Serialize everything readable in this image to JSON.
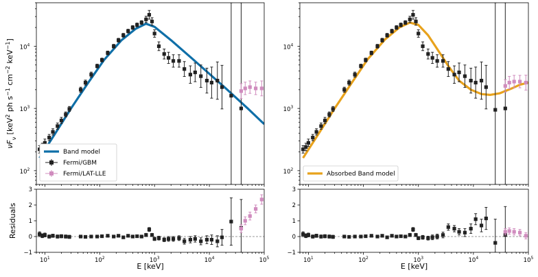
{
  "chart_data": [
    {
      "type": "scatter",
      "panel": "top-left",
      "xscale": "log",
      "yscale": "log",
      "xlim": [
        7,
        100000
      ],
      "ylim": [
        60,
        50000
      ],
      "ylabel_parts": [
        "νF",
        "ν",
        " [keV",
        "2",
        " ph s",
        "−1",
        " cm",
        "−2",
        " keV",
        "−1",
        "]"
      ],
      "xticks": [
        {
          "label": "10",
          "sup": "1",
          "v": 10
        },
        {
          "label": "10",
          "sup": "2",
          "v": 100
        },
        {
          "label": "10",
          "sup": "3",
          "v": 1000
        },
        {
          "label": "10",
          "sup": "4",
          "v": 10000
        },
        {
          "label": "10",
          "sup": "5",
          "v": 100000
        }
      ],
      "yticks": [
        {
          "label": "10",
          "sup": "2",
          "v": 100
        },
        {
          "label": "10",
          "sup": "3",
          "v": 1000
        },
        {
          "label": "10",
          "sup": "4",
          "v": 10000
        }
      ],
      "show_xticklabels": false,
      "model": {
        "name": "Band model",
        "color": "#0f6fa8",
        "x": [
          8,
          15,
          30,
          60,
          120,
          250,
          450,
          700,
          1000,
          2000,
          5000,
          10000,
          20000,
          50000,
          100000
        ],
        "y": [
          160,
          380,
          1000,
          2500,
          6000,
          12500,
          19000,
          23000,
          20500,
          12500,
          6200,
          3600,
          2100,
          1000,
          560
        ]
      },
      "series": [
        {
          "name": "Fermi/GBM",
          "color": "#222222",
          "marker": "square",
          "x": [
            8,
            9,
            10,
            12,
            14,
            17,
            20,
            24,
            28,
            45,
            55,
            70,
            90,
            110,
            140,
            180,
            220,
            270,
            330,
            400,
            480,
            580,
            700,
            800,
            900,
            1000,
            1200,
            1500,
            1800,
            2200,
            2800,
            3500,
            4500,
            5500,
            7000,
            9000,
            11000,
            14000,
            17000,
            25000,
            38000
          ],
          "y": [
            220,
            240,
            280,
            340,
            420,
            520,
            640,
            800,
            980,
            2000,
            2600,
            3500,
            4800,
            6000,
            7800,
            10000,
            12500,
            15000,
            17500,
            20000,
            22000,
            24000,
            27000,
            32000,
            25000,
            16000,
            10000,
            7500,
            6500,
            5800,
            5800,
            4300,
            3500,
            3800,
            3300,
            2800,
            2600,
            2800,
            2200,
            1600,
            1000
          ],
          "yerr": [
            0.06,
            0.06,
            0.06,
            0.05,
            0.05,
            0.05,
            0.05,
            0.04,
            0.04,
            0.04,
            0.04,
            0.04,
            0.03,
            0.03,
            0.03,
            0.03,
            0.03,
            0.03,
            0.03,
            0.03,
            0.03,
            0.03,
            0.05,
            0.07,
            0.06,
            0.06,
            0.07,
            0.08,
            0.09,
            0.1,
            0.1,
            0.12,
            0.14,
            0.15,
            0.18,
            0.2,
            0.25,
            0.3,
            0.35,
            2.0,
            2.0
          ]
        },
        {
          "name": "Fermi/LAT-LLE",
          "color": "#d08cbe",
          "marker": "square",
          "x": [
            38000,
            45000,
            55000,
            70000,
            90000
          ],
          "y": [
            1900,
            2100,
            2200,
            2100,
            2100
          ],
          "yerr": [
            0.12,
            0.1,
            0.1,
            0.1,
            0.12
          ]
        }
      ],
      "legend": {
        "location": "lower-left",
        "entries": [
          "Band model",
          "Fermi/GBM",
          "Fermi/LAT-LLE"
        ]
      }
    },
    {
      "type": "scatter",
      "panel": "top-right",
      "xscale": "log",
      "yscale": "log",
      "xlim": [
        7,
        100000
      ],
      "ylim": [
        60,
        50000
      ],
      "xticks": [
        {
          "label": "10",
          "sup": "1",
          "v": 10
        },
        {
          "label": "10",
          "sup": "2",
          "v": 100
        },
        {
          "label": "10",
          "sup": "3",
          "v": 1000
        },
        {
          "label": "10",
          "sup": "4",
          "v": 10000
        },
        {
          "label": "10",
          "sup": "5",
          "v": 100000
        }
      ],
      "yticks": [
        {
          "label": "10",
          "sup": "2",
          "v": 100
        },
        {
          "label": "10",
          "sup": "3",
          "v": 1000
        },
        {
          "label": "10",
          "sup": "4",
          "v": 10000
        }
      ],
      "show_xticklabels": false,
      "model": {
        "name": "Absorbed Band model",
        "color": "#e8a21c",
        "x": [
          8,
          15,
          30,
          60,
          120,
          250,
          450,
          700,
          1000,
          1500,
          2200,
          3500,
          5500,
          9000,
          14000,
          20000,
          30000,
          50000,
          70000,
          100000
        ],
        "y": [
          160,
          380,
          1000,
          2500,
          6200,
          13000,
          20000,
          24000,
          22000,
          15000,
          9000,
          4800,
          2800,
          2000,
          1700,
          1650,
          1750,
          2100,
          2400,
          2600
        ]
      },
      "series": [
        {
          "name": "Fermi/GBM",
          "color": "#222222",
          "marker": "square",
          "x": [
            8,
            9,
            10,
            12,
            14,
            17,
            20,
            24,
            28,
            45,
            55,
            70,
            90,
            110,
            140,
            180,
            220,
            270,
            330,
            400,
            480,
            580,
            700,
            800,
            900,
            1000,
            1200,
            1500,
            1800,
            2200,
            2800,
            3500,
            4500,
            5500,
            7000,
            9000,
            11000,
            14000,
            17000,
            25000,
            38000
          ],
          "y": [
            220,
            240,
            280,
            340,
            420,
            520,
            640,
            800,
            980,
            2000,
            2600,
            3500,
            4800,
            6000,
            7800,
            10000,
            12500,
            15000,
            17500,
            20000,
            22000,
            24000,
            27000,
            32000,
            25000,
            16000,
            10000,
            7500,
            6500,
            5800,
            5800,
            4300,
            3500,
            3800,
            3300,
            2800,
            2600,
            2800,
            2200,
            950,
            1000
          ],
          "yerr": [
            0.06,
            0.06,
            0.06,
            0.05,
            0.05,
            0.05,
            0.05,
            0.04,
            0.04,
            0.04,
            0.04,
            0.04,
            0.03,
            0.03,
            0.03,
            0.03,
            0.03,
            0.03,
            0.03,
            0.03,
            0.03,
            0.03,
            0.05,
            0.07,
            0.06,
            0.06,
            0.07,
            0.08,
            0.09,
            0.1,
            0.1,
            0.12,
            0.14,
            0.15,
            0.18,
            0.2,
            0.25,
            0.3,
            0.35,
            2.0,
            2.0
          ]
        },
        {
          "name": "Fermi/LAT-LLE",
          "color": "#d08cbe",
          "marker": "square",
          "x": [
            38000,
            45000,
            55000,
            70000,
            90000
          ],
          "y": [
            2300,
            2600,
            2700,
            2700,
            2600
          ],
          "yerr": [
            0.1,
            0.1,
            0.1,
            0.1,
            0.12
          ]
        }
      ],
      "legend": {
        "location": "lower-left",
        "entries": [
          "Absorbed Band model"
        ]
      }
    },
    {
      "type": "scatter",
      "panel": "bottom-left",
      "xscale": "log",
      "yscale": "linear",
      "xlim": [
        7,
        100000
      ],
      "ylim": [
        -1,
        3
      ],
      "ylabel": "Residuals",
      "xlabel": "E [keV]",
      "xticks": [
        {
          "label": "10",
          "sup": "1",
          "v": 10
        },
        {
          "label": "10",
          "sup": "2",
          "v": 100
        },
        {
          "label": "10",
          "sup": "3",
          "v": 1000
        },
        {
          "label": "10",
          "sup": "4",
          "v": 10000
        },
        {
          "label": "10",
          "sup": "5",
          "v": 100000
        }
      ],
      "yticks": [
        {
          "label": "−1",
          "v": -1
        },
        {
          "label": "0",
          "v": 0
        },
        {
          "label": "1",
          "v": 1
        },
        {
          "label": "2",
          "v": 2
        },
        {
          "label": "3",
          "v": 3
        }
      ],
      "show_xticklabels": true,
      "zero_line": true,
      "series": [
        {
          "name": "Fermi/GBM",
          "color": "#222222",
          "x": [
            8,
            9,
            10,
            12,
            14,
            17,
            20,
            24,
            28,
            45,
            55,
            70,
            90,
            110,
            140,
            180,
            220,
            270,
            330,
            400,
            480,
            580,
            700,
            800,
            900,
            1000,
            1200,
            1500,
            1800,
            2200,
            2800,
            3500,
            4500,
            5500,
            7000,
            9000,
            11000,
            14000,
            17000,
            25000,
            38000
          ],
          "y": [
            0.15,
            0.05,
            0.1,
            0.0,
            0.05,
            0.0,
            0.02,
            0.0,
            -0.02,
            0.0,
            -0.02,
            0.0,
            0.0,
            0.02,
            0.05,
            0.0,
            0.05,
            -0.05,
            0.05,
            0.0,
            0.02,
            0.0,
            0.1,
            0.45,
            0.1,
            -0.15,
            -0.1,
            -0.2,
            -0.15,
            -0.15,
            -0.1,
            -0.3,
            -0.2,
            -0.15,
            -0.3,
            -0.2,
            -0.2,
            -0.3,
            -0.05,
            0.95,
            0.55
          ],
          "yerr": [
            0.15,
            0.12,
            0.12,
            0.1,
            0.1,
            0.1,
            0.1,
            0.1,
            0.1,
            0.08,
            0.08,
            0.08,
            0.08,
            0.08,
            0.08,
            0.08,
            0.08,
            0.08,
            0.08,
            0.08,
            0.08,
            0.08,
            0.1,
            0.12,
            0.1,
            0.1,
            0.12,
            0.12,
            0.15,
            0.15,
            0.15,
            0.18,
            0.2,
            0.2,
            0.22,
            0.25,
            0.3,
            0.35,
            0.5,
            1.5,
            1.8
          ]
        },
        {
          "name": "Fermi/LAT-LLE",
          "color": "#d08cbe",
          "x": [
            38000,
            45000,
            55000,
            70000,
            90000
          ],
          "y": [
            0.5,
            1.0,
            1.3,
            1.75,
            2.35
          ],
          "yerr": [
            0.25,
            0.25,
            0.25,
            0.25,
            0.3
          ]
        }
      ]
    },
    {
      "type": "scatter",
      "panel": "bottom-right",
      "xscale": "log",
      "yscale": "linear",
      "xlim": [
        7,
        100000
      ],
      "ylim": [
        -1,
        3
      ],
      "xlabel": "E [keV]",
      "xticks": [
        {
          "label": "10",
          "sup": "1",
          "v": 10
        },
        {
          "label": "10",
          "sup": "2",
          "v": 100
        },
        {
          "label": "10",
          "sup": "3",
          "v": 1000
        },
        {
          "label": "10",
          "sup": "4",
          "v": 10000
        },
        {
          "label": "10",
          "sup": "5",
          "v": 100000
        }
      ],
      "yticks": [
        {
          "label": "−1",
          "v": -1
        },
        {
          "label": "0",
          "v": 0
        },
        {
          "label": "1",
          "v": 1
        },
        {
          "label": "2",
          "v": 2
        },
        {
          "label": "3",
          "v": 3
        }
      ],
      "show_xticklabels": true,
      "zero_line": true,
      "series": [
        {
          "name": "Fermi/GBM",
          "color": "#222222",
          "x": [
            8,
            9,
            10,
            12,
            14,
            17,
            20,
            24,
            28,
            45,
            55,
            70,
            90,
            110,
            140,
            180,
            220,
            270,
            330,
            400,
            480,
            580,
            700,
            800,
            900,
            1000,
            1200,
            1500,
            1800,
            2200,
            2800,
            3500,
            4500,
            5500,
            7000,
            9000,
            11000,
            14000,
            17000,
            25000,
            38000
          ],
          "y": [
            0.15,
            0.05,
            0.1,
            0.0,
            0.05,
            0.0,
            0.02,
            0.0,
            -0.02,
            0.0,
            -0.02,
            0.0,
            0.0,
            0.02,
            0.05,
            0.0,
            0.05,
            -0.05,
            0.05,
            0.0,
            0.02,
            0.0,
            0.1,
            0.45,
            0.1,
            -0.1,
            -0.05,
            -0.1,
            -0.05,
            0.0,
            0.1,
            0.6,
            0.5,
            0.3,
            0.25,
            0.5,
            1.1,
            0.7,
            1.15,
            -0.4,
            0.1
          ],
          "yerr": [
            0.15,
            0.12,
            0.12,
            0.1,
            0.1,
            0.1,
            0.1,
            0.1,
            0.1,
            0.08,
            0.08,
            0.08,
            0.08,
            0.08,
            0.08,
            0.08,
            0.08,
            0.08,
            0.08,
            0.08,
            0.08,
            0.08,
            0.1,
            0.12,
            0.1,
            0.1,
            0.12,
            0.12,
            0.15,
            0.15,
            0.18,
            0.2,
            0.2,
            0.2,
            0.25,
            0.3,
            0.35,
            0.4,
            0.7,
            1.5,
            1.8
          ]
        },
        {
          "name": "Fermi/LAT-LLE",
          "color": "#d08cbe",
          "x": [
            38000,
            45000,
            55000,
            70000,
            90000
          ],
          "y": [
            0.3,
            0.35,
            0.3,
            0.25,
            0.05
          ],
          "yerr": [
            0.2,
            0.2,
            0.2,
            0.2,
            0.2
          ]
        }
      ]
    }
  ]
}
